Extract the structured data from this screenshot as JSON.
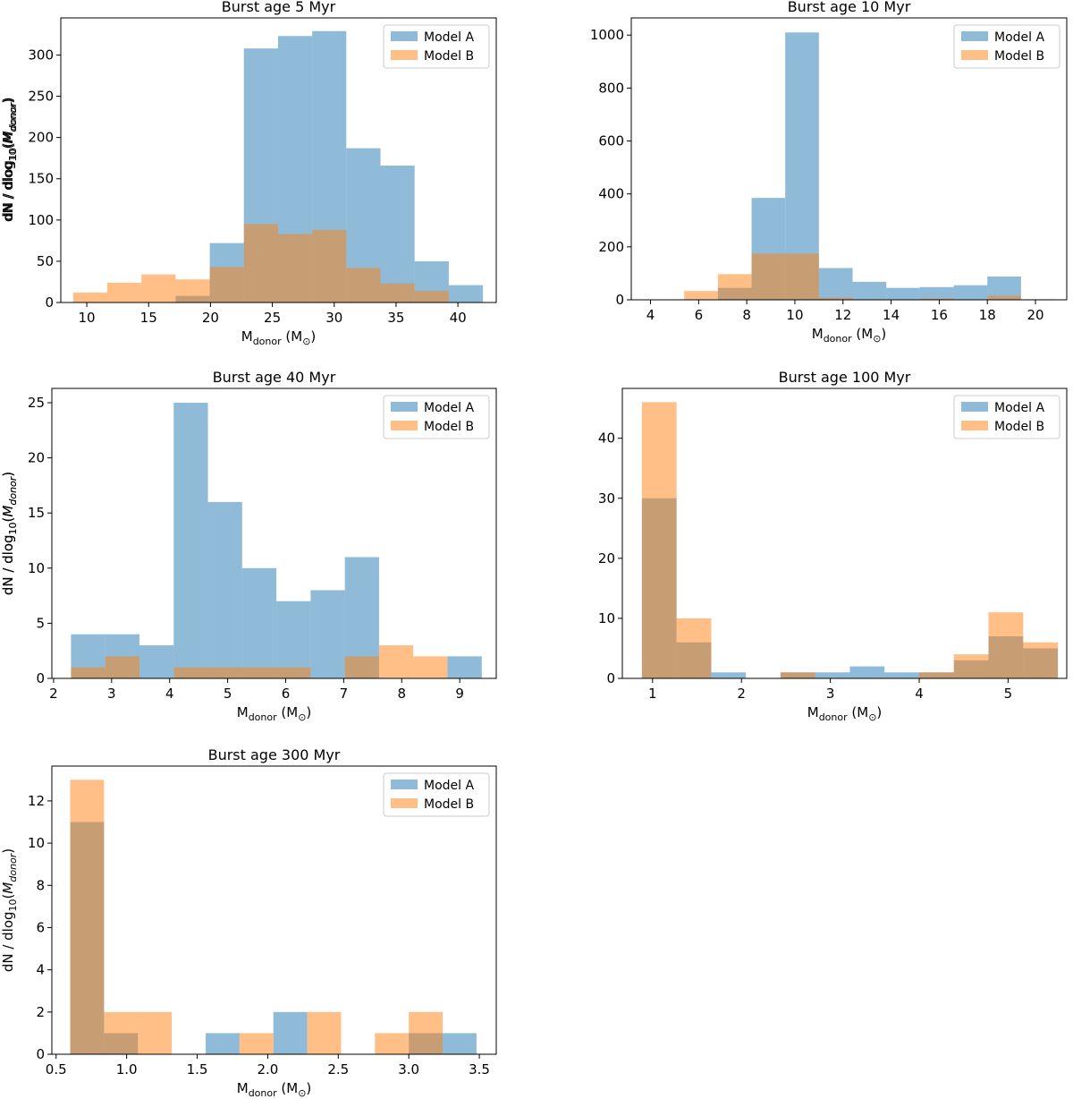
{
  "figure": {
    "xlabel": {
      "main": "M",
      "sub": "donor",
      "unit": " (M",
      "sun": "⊙",
      "close": ")"
    },
    "ylabel": {
      "prefix": "dN / dlog",
      "sub10": "10",
      "paren_open": "(",
      "M": "M",
      "sub": "donor",
      "paren_close": ")"
    }
  },
  "chart_data": [
    {
      "type": "bar",
      "title": "Burst age 5 Myr",
      "xlim": [
        7.9,
        43.1
      ],
      "ylim": [
        0,
        345
      ],
      "xticks": [
        10,
        15,
        20,
        25,
        30,
        35,
        40
      ],
      "yticks": [
        0,
        50,
        100,
        150,
        200,
        250,
        300
      ],
      "legend": "top-right",
      "series": [
        {
          "name": "Model A",
          "color": "#1f77b4",
          "bins": [
            [
              8.9,
              11.66,
              0
            ],
            [
              11.66,
              14.42,
              0
            ],
            [
              14.42,
              17.18,
              0
            ],
            [
              17.18,
              19.94,
              8
            ],
            [
              19.94,
              22.7,
              72
            ],
            [
              22.7,
              25.46,
              308
            ],
            [
              25.46,
              28.22,
              323
            ],
            [
              28.22,
              30.98,
              329
            ],
            [
              30.98,
              33.74,
              187
            ],
            [
              33.74,
              36.5,
              166
            ],
            [
              36.5,
              39.26,
              50
            ],
            [
              39.26,
              42.02,
              21
            ]
          ]
        },
        {
          "name": "Model B",
          "color": "#ff7f0e",
          "bins": [
            [
              8.9,
              11.66,
              12
            ],
            [
              11.66,
              14.42,
              24
            ],
            [
              14.42,
              17.18,
              34
            ],
            [
              17.18,
              19.94,
              28
            ],
            [
              19.94,
              22.7,
              43
            ],
            [
              22.7,
              25.46,
              95
            ],
            [
              25.46,
              28.22,
              83
            ],
            [
              28.22,
              30.98,
              88
            ],
            [
              30.98,
              33.74,
              42
            ],
            [
              33.74,
              36.5,
              23
            ],
            [
              36.5,
              39.26,
              14
            ],
            [
              39.26,
              42.02,
              0
            ]
          ]
        }
      ]
    },
    {
      "type": "bar",
      "title": "Burst age 10 Myr",
      "xlim": [
        3.2,
        21.3
      ],
      "ylim": [
        0,
        1065
      ],
      "xticks": [
        4,
        6,
        8,
        10,
        12,
        14,
        16,
        18,
        20
      ],
      "yticks": [
        0,
        200,
        400,
        600,
        800,
        1000
      ],
      "legend": "top-right",
      "series": [
        {
          "name": "Model A",
          "color": "#1f77b4",
          "bins": [
            [
              4.0,
              5.4,
              0
            ],
            [
              5.4,
              6.8,
              0
            ],
            [
              6.8,
              8.2,
              45
            ],
            [
              8.2,
              9.6,
              385
            ],
            [
              9.6,
              11.0,
              1010
            ],
            [
              11.0,
              12.4,
              120
            ],
            [
              12.4,
              13.8,
              68
            ],
            [
              13.8,
              15.2,
              45
            ],
            [
              15.2,
              16.6,
              48
            ],
            [
              16.6,
              18.0,
              55
            ],
            [
              18.0,
              19.4,
              88
            ],
            [
              19.4,
              20.8,
              2
            ]
          ]
        },
        {
          "name": "Model B",
          "color": "#ff7f0e",
          "bins": [
            [
              4.0,
              5.4,
              0
            ],
            [
              5.4,
              6.8,
              33
            ],
            [
              6.8,
              8.2,
              97
            ],
            [
              8.2,
              9.6,
              175
            ],
            [
              9.6,
              11.0,
              175
            ],
            [
              11.0,
              12.4,
              8
            ],
            [
              12.4,
              13.8,
              0
            ],
            [
              13.8,
              15.2,
              0
            ],
            [
              15.2,
              16.6,
              5
            ],
            [
              16.6,
              18.0,
              0
            ],
            [
              18.0,
              19.4,
              15
            ],
            [
              19.4,
              20.8,
              0
            ]
          ]
        }
      ]
    },
    {
      "type": "bar",
      "title": "Burst age 40 Myr",
      "xlim": [
        1.97,
        9.63
      ],
      "ylim": [
        0,
        26.3
      ],
      "xticks": [
        2,
        3,
        4,
        5,
        6,
        7,
        8,
        9
      ],
      "yticks": [
        0,
        5,
        10,
        15,
        20,
        25
      ],
      "legend": "top-right",
      "series": [
        {
          "name": "Model A",
          "color": "#1f77b4",
          "bins": [
            [
              2.3,
              2.89,
              4
            ],
            [
              2.89,
              3.48,
              4
            ],
            [
              3.48,
              4.07,
              3
            ],
            [
              4.07,
              4.66,
              25
            ],
            [
              4.66,
              5.25,
              16
            ],
            [
              5.25,
              5.84,
              10
            ],
            [
              5.84,
              6.43,
              7
            ],
            [
              6.43,
              7.02,
              8
            ],
            [
              7.02,
              7.61,
              11
            ],
            [
              7.61,
              8.2,
              0
            ],
            [
              8.2,
              8.79,
              0
            ],
            [
              8.79,
              9.38,
              2
            ]
          ]
        },
        {
          "name": "Model B",
          "color": "#ff7f0e",
          "bins": [
            [
              2.3,
              2.89,
              1
            ],
            [
              2.89,
              3.48,
              2
            ],
            [
              3.48,
              4.07,
              0
            ],
            [
              4.07,
              4.66,
              1
            ],
            [
              4.66,
              5.25,
              1
            ],
            [
              5.25,
              5.84,
              1
            ],
            [
              5.84,
              6.43,
              1
            ],
            [
              6.43,
              7.02,
              0
            ],
            [
              7.02,
              7.61,
              2
            ],
            [
              7.61,
              8.2,
              3
            ],
            [
              8.2,
              8.79,
              2
            ],
            [
              8.79,
              9.38,
              0
            ]
          ]
        }
      ]
    },
    {
      "type": "bar",
      "title": "Burst age 100 Myr",
      "xlim": [
        0.66,
        5.66
      ],
      "ylim": [
        0,
        48.3
      ],
      "xticks": [
        1,
        2,
        3,
        4,
        5
      ],
      "yticks": [
        0,
        10,
        20,
        30,
        40
      ],
      "legend": "top-right",
      "series": [
        {
          "name": "Model A",
          "color": "#1f77b4",
          "bins": [
            [
              0.88,
              1.27,
              30
            ],
            [
              1.27,
              1.66,
              6
            ],
            [
              1.66,
              2.05,
              1
            ],
            [
              2.05,
              2.44,
              0
            ],
            [
              2.44,
              2.83,
              1
            ],
            [
              2.83,
              3.22,
              1
            ],
            [
              3.22,
              3.61,
              2
            ],
            [
              3.61,
              4.0,
              1
            ],
            [
              4.0,
              4.39,
              1
            ],
            [
              4.39,
              4.78,
              3
            ],
            [
              4.78,
              5.17,
              7
            ],
            [
              5.17,
              5.56,
              5
            ]
          ]
        },
        {
          "name": "Model B",
          "color": "#ff7f0e",
          "bins": [
            [
              0.88,
              1.27,
              46
            ],
            [
              1.27,
              1.66,
              10
            ],
            [
              1.66,
              2.05,
              0
            ],
            [
              2.05,
              2.44,
              0
            ],
            [
              2.44,
              2.83,
              1
            ],
            [
              2.83,
              3.22,
              0
            ],
            [
              3.22,
              3.61,
              0
            ],
            [
              3.61,
              4.0,
              0
            ],
            [
              4.0,
              4.39,
              1
            ],
            [
              4.39,
              4.78,
              4
            ],
            [
              4.78,
              5.17,
              11
            ],
            [
              5.17,
              5.56,
              6
            ]
          ]
        }
      ]
    },
    {
      "type": "bar",
      "title": "Burst age 300 Myr",
      "xlim": [
        0.47,
        3.62
      ],
      "ylim": [
        0,
        13.65
      ],
      "xticks": [
        0.5,
        1.0,
        1.5,
        2.0,
        2.5,
        3.0,
        3.5
      ],
      "xtick_labels": [
        "0.5",
        "1.0",
        "1.5",
        "2.0",
        "2.5",
        "3.0",
        "3.5"
      ],
      "yticks": [
        0,
        2,
        4,
        6,
        8,
        10,
        12
      ],
      "legend": "top-right",
      "series": [
        {
          "name": "Model A",
          "color": "#1f77b4",
          "bins": [
            [
              0.6,
              0.84,
              11
            ],
            [
              0.84,
              1.08,
              1
            ],
            [
              1.08,
              1.32,
              0
            ],
            [
              1.32,
              1.56,
              0
            ],
            [
              1.56,
              1.8,
              1
            ],
            [
              1.8,
              2.04,
              0
            ],
            [
              2.04,
              2.28,
              2
            ],
            [
              2.28,
              2.52,
              0
            ],
            [
              2.52,
              2.76,
              0
            ],
            [
              2.76,
              3.0,
              0
            ],
            [
              3.0,
              3.24,
              1
            ],
            [
              3.24,
              3.48,
              1
            ]
          ]
        },
        {
          "name": "Model B",
          "color": "#ff7f0e",
          "bins": [
            [
              0.6,
              0.84,
              13
            ],
            [
              0.84,
              1.08,
              2
            ],
            [
              1.08,
              1.32,
              2
            ],
            [
              1.32,
              1.56,
              0
            ],
            [
              1.56,
              1.8,
              0
            ],
            [
              1.8,
              2.04,
              1
            ],
            [
              2.04,
              2.28,
              0
            ],
            [
              2.28,
              2.52,
              2
            ],
            [
              2.52,
              2.76,
              0
            ],
            [
              2.76,
              3.0,
              1
            ],
            [
              3.0,
              3.24,
              2
            ],
            [
              3.24,
              3.48,
              0
            ]
          ]
        }
      ]
    }
  ]
}
